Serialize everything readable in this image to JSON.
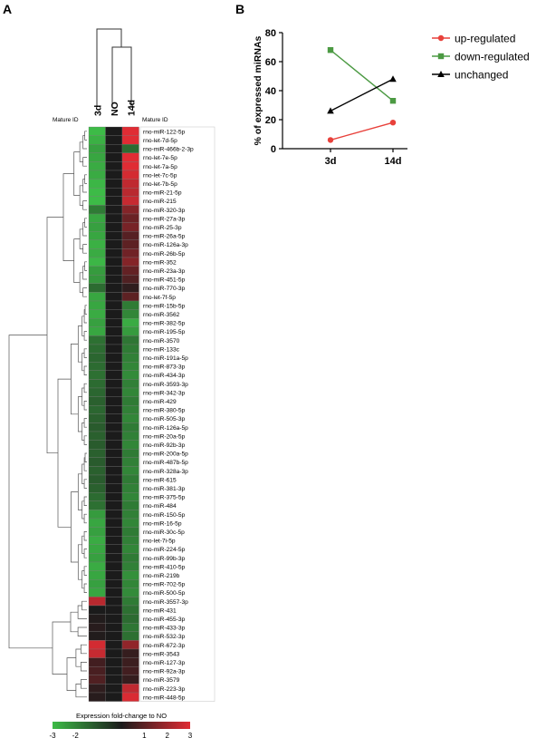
{
  "panel_a": {
    "label": "A"
  },
  "panel_b": {
    "label": "B"
  },
  "chart_data": [
    {
      "type": "heatmap",
      "panel": "A",
      "columns": [
        "3d",
        "NO",
        "14d"
      ],
      "row_header_left": "Mature ID",
      "row_header_right": "Mature ID",
      "rows": [
        {
          "id": "rno-miR-122-5p",
          "values": [
            -3,
            0,
            3
          ]
        },
        {
          "id": "rno-let-7d-5p",
          "values": [
            -2.8,
            0,
            3
          ]
        },
        {
          "id": "rno-miR-466b-2-3p",
          "values": [
            -2.5,
            0,
            -1.5
          ]
        },
        {
          "id": "rno-let-7e-5p",
          "values": [
            -2.6,
            0,
            3
          ]
        },
        {
          "id": "rno-let-7a-5p",
          "values": [
            -2.7,
            0,
            3
          ]
        },
        {
          "id": "rno-let-7c-5p",
          "values": [
            -2.7,
            0,
            2.8
          ]
        },
        {
          "id": "rno-let-7b-5p",
          "values": [
            -2.9,
            0,
            2.5
          ]
        },
        {
          "id": "rno-miR-21-5p",
          "values": [
            -3,
            0,
            2.4
          ]
        },
        {
          "id": "rno-miR-215",
          "values": [
            -3,
            0,
            2.6
          ]
        },
        {
          "id": "rno-miR-320-3p",
          "values": [
            -1.8,
            0,
            1.6
          ]
        },
        {
          "id": "rno-miR-27a-3p",
          "values": [
            -2.6,
            0,
            1.2
          ]
        },
        {
          "id": "rno-miR-25-3p",
          "values": [
            -2.5,
            0,
            1.4
          ]
        },
        {
          "id": "rno-miR-26a-5p",
          "values": [
            -2.6,
            0,
            0.9
          ]
        },
        {
          "id": "rno-miR-126a-3p",
          "values": [
            -2.8,
            0,
            1.0
          ]
        },
        {
          "id": "rno-miR-26b-5p",
          "values": [
            -2.7,
            0,
            1.3
          ]
        },
        {
          "id": "rno-miR-352",
          "values": [
            -2.9,
            0,
            1.6
          ]
        },
        {
          "id": "rno-miR-23a-3p",
          "values": [
            -2.4,
            0,
            1.1
          ]
        },
        {
          "id": "rno-miR-451-5p",
          "values": [
            -2.3,
            0,
            0.8
          ]
        },
        {
          "id": "rno-miR-770-3p",
          "values": [
            -1.5,
            0,
            0.3
          ]
        },
        {
          "id": "rno-let-7f-5p",
          "values": [
            -2.6,
            0,
            1.0
          ]
        },
        {
          "id": "rno-miR-15b-5p",
          "values": [
            -2.6,
            0,
            -1.8
          ]
        },
        {
          "id": "rno-miR-3562",
          "values": [
            -2.7,
            0,
            -2.0
          ]
        },
        {
          "id": "rno-miR-382-5p",
          "values": [
            -2.5,
            0,
            -2.7
          ]
        },
        {
          "id": "rno-miR-195-5p",
          "values": [
            -2.6,
            0,
            -2.4
          ]
        },
        {
          "id": "rno-miR-3570",
          "values": [
            -1.6,
            0,
            -1.7
          ]
        },
        {
          "id": "rno-miR-133c",
          "values": [
            -1.5,
            0,
            -1.8
          ]
        },
        {
          "id": "rno-miR-191a-5p",
          "values": [
            -1.4,
            0,
            -1.9
          ]
        },
        {
          "id": "rno-miR-873-3p",
          "values": [
            -1.5,
            0,
            -2.0
          ]
        },
        {
          "id": "rno-miR-434-3p",
          "values": [
            -1.6,
            0,
            -2.1
          ]
        },
        {
          "id": "rno-miR-3593-3p",
          "values": [
            -1.5,
            0,
            -1.9
          ]
        },
        {
          "id": "rno-miR-342-3p",
          "values": [
            -1.4,
            0,
            -2.0
          ]
        },
        {
          "id": "rno-miR-429",
          "values": [
            -1.3,
            0,
            -1.8
          ]
        },
        {
          "id": "rno-miR-380-5p",
          "values": [
            -1.4,
            0,
            -1.9
          ]
        },
        {
          "id": "rno-miR-505-3p",
          "values": [
            -1.3,
            0,
            -2.0
          ]
        },
        {
          "id": "rno-miR-126a-5p",
          "values": [
            -1.2,
            0,
            -1.8
          ]
        },
        {
          "id": "rno-miR-20a-5p",
          "values": [
            -1.3,
            0,
            -1.9
          ]
        },
        {
          "id": "rno-miR-92b-3p",
          "values": [
            -1.2,
            0,
            -2.0
          ]
        },
        {
          "id": "rno-miR-200a-5p",
          "values": [
            -1.3,
            0,
            -1.8
          ]
        },
        {
          "id": "rno-miR-487b-5p",
          "values": [
            -1.2,
            0,
            -1.9
          ]
        },
        {
          "id": "rno-miR-328a-3p",
          "values": [
            -1.3,
            0,
            -2.0
          ]
        },
        {
          "id": "rno-miR-615",
          "values": [
            -1.2,
            0,
            -1.8
          ]
        },
        {
          "id": "rno-miR-381-3p",
          "values": [
            -1.3,
            0,
            -1.9
          ]
        },
        {
          "id": "rno-miR-375-5p",
          "values": [
            -1.5,
            0,
            -2.0
          ]
        },
        {
          "id": "rno-miR-484",
          "values": [
            -1.6,
            0,
            -1.8
          ]
        },
        {
          "id": "rno-miR-150-5p",
          "values": [
            -2.4,
            0,
            -1.9
          ]
        },
        {
          "id": "rno-miR-16-5p",
          "values": [
            -2.6,
            0,
            -2.0
          ]
        },
        {
          "id": "rno-miR-30c-5p",
          "values": [
            -2.5,
            0,
            -1.8
          ]
        },
        {
          "id": "rno-let-7i-5p",
          "values": [
            -2.7,
            0,
            -1.9
          ]
        },
        {
          "id": "rno-miR-224-5p",
          "values": [
            -2.6,
            0,
            -2.0
          ]
        },
        {
          "id": "rno-miR-99b-3p",
          "values": [
            -2.5,
            0,
            -1.8
          ]
        },
        {
          "id": "rno-miR-410-5p",
          "values": [
            -2.7,
            0,
            -1.9
          ]
        },
        {
          "id": "rno-miR-219b",
          "values": [
            -2.6,
            0,
            -2.2
          ]
        },
        {
          "id": "rno-miR-702-5p",
          "values": [
            -2.5,
            0,
            -2.0
          ]
        },
        {
          "id": "rno-miR-500-5p",
          "values": [
            -2.6,
            0,
            -2.1
          ]
        },
        {
          "id": "rno-miR-3557-3p",
          "values": [
            2.4,
            0,
            -1.8
          ]
        },
        {
          "id": "rno-miR-431",
          "values": [
            0,
            0,
            -1.6
          ]
        },
        {
          "id": "rno-miR-455-3p",
          "values": [
            0.1,
            0,
            -1.5
          ]
        },
        {
          "id": "rno-miR-433-3p",
          "values": [
            0.2,
            0,
            -1.7
          ]
        },
        {
          "id": "rno-miR-532-3p",
          "values": [
            0.1,
            0,
            -1.6
          ]
        },
        {
          "id": "rno-miR-672-3p",
          "values": [
            2.8,
            0,
            1.8
          ]
        },
        {
          "id": "rno-miR-3543",
          "values": [
            2.6,
            0,
            0.4
          ]
        },
        {
          "id": "rno-miR-127-3p",
          "values": [
            0.6,
            0,
            0.5
          ]
        },
        {
          "id": "rno-miR-92a-3p",
          "values": [
            0.7,
            0,
            0.6
          ]
        },
        {
          "id": "rno-miR-3579",
          "values": [
            0.8,
            0,
            0.4
          ]
        },
        {
          "id": "rno-miR-223-3p",
          "values": [
            0.3,
            0,
            2.5
          ]
        },
        {
          "id": "rno-miR-448-5p",
          "values": [
            0.2,
            0,
            2.9
          ]
        }
      ],
      "colorbar": {
        "title": "Expression fold-change to NO",
        "range": [
          -3,
          3
        ],
        "tick_labels": [
          "-3",
          "-2",
          "1",
          "2",
          "3"
        ],
        "tick_values": [
          -3,
          -2,
          1,
          2,
          3
        ],
        "colors": [
          "#3dbb47",
          "#1b1b1b",
          "#e02c34"
        ]
      }
    },
    {
      "type": "line",
      "panel": "B",
      "categories": [
        "3d",
        "14d"
      ],
      "ylabel": "% of expressed miRNAs",
      "xlabel": "",
      "ylim": [
        0,
        80
      ],
      "yticks": [
        0,
        20,
        40,
        60,
        80
      ],
      "legend_position": "right",
      "series": [
        {
          "name": "up-regulated",
          "values": [
            6,
            18
          ],
          "color": "#e8413b",
          "marker": "circle"
        },
        {
          "name": "down-regulated",
          "values": [
            68,
            33
          ],
          "color": "#4c9a43",
          "marker": "square"
        },
        {
          "name": "unchanged",
          "values": [
            26,
            48
          ],
          "color": "#000000",
          "marker": "triangle"
        }
      ]
    }
  ]
}
